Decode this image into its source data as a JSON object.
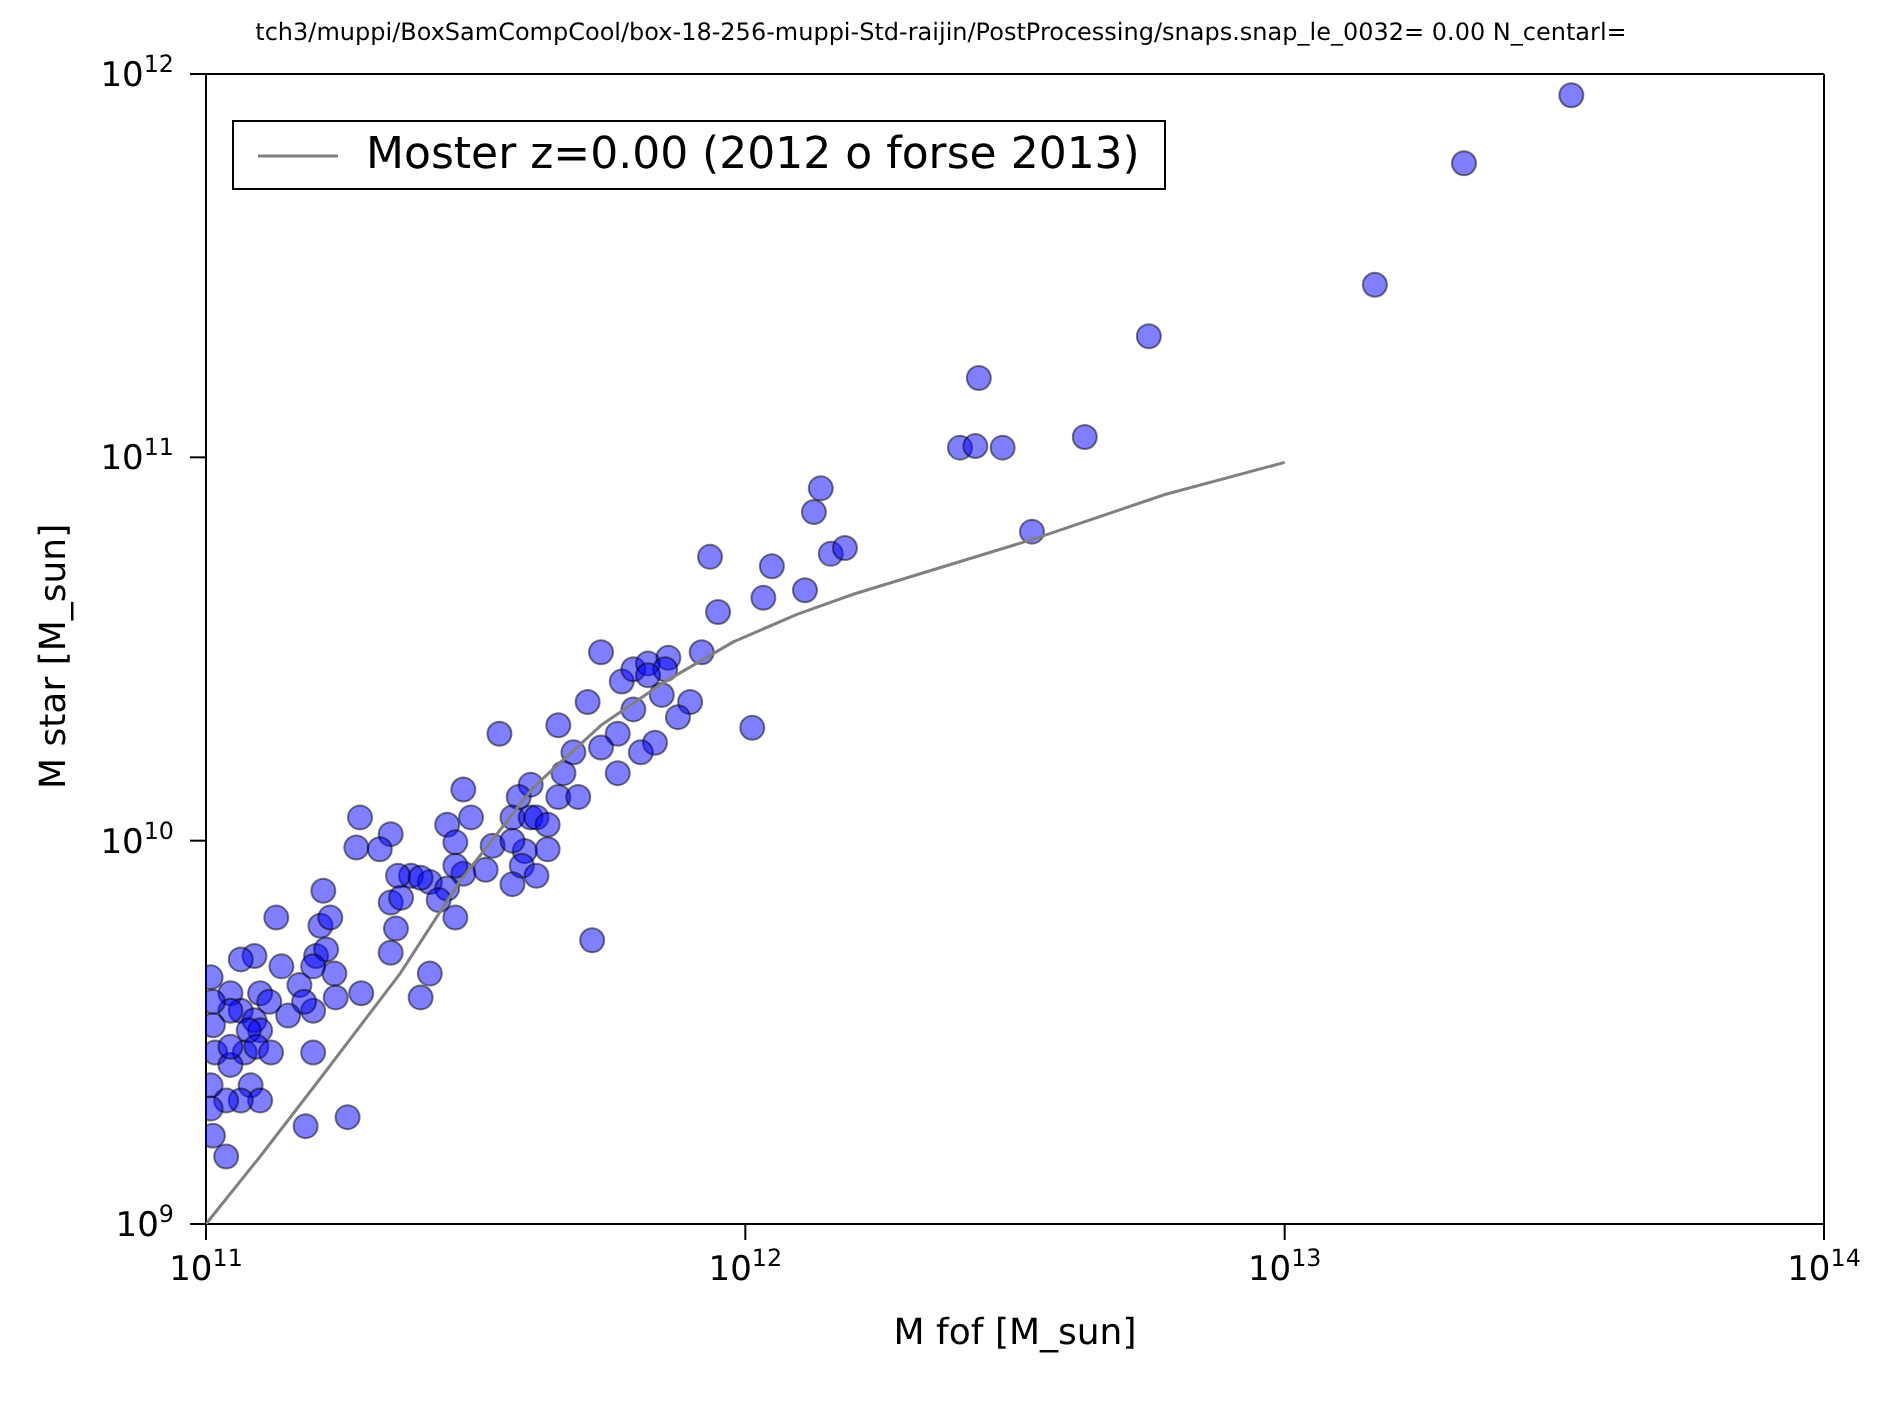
{
  "chart_data": {
    "type": "scatter",
    "title": "tch3/muppi/BoxSamCompCool/box-18-256-muppi-Std-raijin/PostProcessing/snaps.snap_le_0032= 0.00  N_centarl=",
    "xlabel": "M fof [M_sun]",
    "ylabel": "M star [M_sun]",
    "log": "xy",
    "grid": false,
    "legend": "top left",
    "xlim": [
      100000000000.0,
      100000000000000.0
    ],
    "ylim": [
      1000000000.0,
      1000000000000.0
    ],
    "xticks": [
      {
        "value": 100000000000.0,
        "label": "10$^{11}$"
      },
      {
        "value": 1000000000000.0,
        "label": "10$^{12}$"
      },
      {
        "value": 10000000000000.0,
        "label": "10$^{13}$"
      },
      {
        "value": 100000000000000.0,
        "label": "10$^{14}$"
      }
    ],
    "yticks": [
      {
        "value": 1000000000.0,
        "label": "10$^{9}$"
      },
      {
        "value": 10000000000.0,
        "label": "10$^{10}$"
      },
      {
        "value": 100000000000.0,
        "label": "10$^{11}$"
      },
      {
        "value": 1000000000000.0,
        "label": "10$^{12}$"
      }
    ],
    "series": [
      {
        "color": "#0000ff",
        "marker": "circle",
        "x": [
          34000000000000.0,
          21500000000000.0,
          14700000000000.0,
          5600000000000.0,
          4260000000000.0,
          2710000000000.0,
          2500000000000.0,
          2670000000000.0,
          3000000000000.0,
          3400000000000.0,
          1380000000000.0,
          1340000000000.0,
          1440000000000.0,
          1530000000000.0,
          1120000000000.0,
          860000000000.0,
          1290000000000.0,
          890000000000.0,
          1080000000000.0,
          540000000000.0,
          830000000000.0,
          590000000000.0,
          620000000000.0,
          660000000000.0,
          720000000000.0,
          710000000000.0,
          660000000000.0,
          700000000000.0,
          620000000000.0,
          790000000000.0,
          750000000000.0,
          1030000000000.0,
          510000000000.0,
          450000000000.0,
          580000000000.0,
          540000000000.0,
          680000000000.0,
          640000000000.0,
          580000000000.0,
          480000000000.0,
          460000000000.0,
          350000000000.0,
          400000000000.0,
          380000000000.0,
          450000000000.0,
          490000000000.0,
          300000000000.0,
          280000000000.0,
          310000000000.0,
          370000000000.0,
          400000000000.0,
          410000000000.0,
          430000000000.0,
          290000000000.0,
          340000000000.0,
          390000000000.0,
          430000000000.0,
          370000000000.0,
          385000000000.0,
          410000000000.0,
          370000000000.0,
          330000000000.0,
          300000000000.0,
          290000000000.0,
          240000000000.0,
          260000000000.0,
          280000000000.0,
          270000000000.0,
          290000000000.0,
          520000000000.0,
          260000000000.0,
          250000000000.0,
          193000000000.0,
          220000000000.0,
          190000000000.0,
          210000000000.0,
          227000000000.0,
          250000000000.0,
          220000000000.0,
          230000000000.0,
          165000000000.0,
          225000000000.0,
          220000000000.0,
          163000000000.0,
          170000000000.0,
          160000000000.0,
          167000000000.0,
          173000000000.0,
          158000000000.0,
          135000000000.0,
          123000000000.0,
          116000000000.0,
          138000000000.0,
          194000000000.0,
          174000000000.0,
          158000000000.0,
          149000000000.0,
          152000000000.0,
          142000000000.0,
          126000000000.0,
          131000000000.0,
          111000000000.0,
          116000000000.0,
          123000000000.0,
          126000000000.0,
          120000000000.0,
          111000000000.0,
          103000000000.0,
          104000000000.0,
          118000000000.0,
          124000000000.0,
          132000000000.0,
          158000000000.0,
          111000000000.0,
          121000000000.0,
          126000000000.0,
          116000000000.0,
          109000000000.0,
          102000000000.0,
          102000000000.0,
          103000000000.0,
          109000000000.0,
          153000000000.0,
          183000000000.0,
          102000000000.0,
          103000000000.0,
          111000000000.0
        ],
        "values": [
          880000000000.0,
          585000000000.0,
          282000000000.0,
          207000000000.0,
          113000000000.0,
          161000000000.0,
          106000000000.0,
          107000000000.0,
          106000000000.0,
          64000000000.0,
          83000000000.0,
          72000000000.0,
          56000000000.0,
          58000000000.0,
          52000000000.0,
          55000000000.0,
          45000000000.0,
          39500000000.0,
          43000000000.0,
          31000000000.0,
          31000000000.0,
          26000000000.0,
          28000000000.0,
          29000000000.0,
          30000000000.0,
          28000000000.0,
          27000000000.0,
          24000000000.0,
          22000000000.0,
          23000000000.0,
          21000000000.0,
          19700000000.0,
          23000000000.0,
          20000000000.0,
          19000000000.0,
          17500000000.0,
          18000000000.0,
          17000000000.0,
          15000000000.0,
          17000000000.0,
          15000000000.0,
          19000000000.0,
          14000000000.0,
          13000000000.0,
          13000000000.0,
          13000000000.0,
          13600000000.0,
          11000000000.0,
          11500000000.0,
          11500000000.0,
          11500000000.0,
          11500000000.0,
          11000000000.0,
          9900000000.0,
          9700000000.0,
          9400000000.0,
          9500000000.0,
          10000000000.0,
          8600000000.0,
          8100000000.0,
          7700000000.0,
          8400000000.0,
          8200000000.0,
          8600000000.0,
          8100000000.0,
          7800000000.0,
          7500000000.0,
          7000000000.0,
          6300000000.0,
          5500000000.0,
          4500000000.0,
          3900000000.0,
          11500000000.0,
          10400000000.0,
          9600000000.0,
          9500000000.0,
          8100000000.0,
          8000000000.0,
          6900000000.0,
          7100000000.0,
          7400000000.0,
          5900000000.0,
          5100000000.0,
          6000000000.0,
          6300000000.0,
          5000000000.0,
          5200000000.0,
          4500000000.0,
          4700000000.0,
          6300000000.0,
          5000000000.0,
          4900000000.0,
          4700000000.0,
          4000000000.0,
          3900000000.0,
          3600000000.0,
          4200000000.0,
          3800000000.0,
          3500000000.0,
          4000000000.0,
          3800000000.0,
          4000000000.0,
          3600000000.0,
          3400000000.0,
          3200000000.0,
          3200000000.0,
          3600000000.0,
          3300000000.0,
          2800000000.0,
          2800000000.0,
          2900000000.0,
          2800000000.0,
          2800000000.0,
          2600000000.0,
          2300000000.0,
          2100000000.0,
          2100000000.0,
          2100000000.0,
          2300000000.0,
          2000000000.0,
          1700000000.0,
          1500000000.0,
          1800000000.0,
          1900000000.0,
          4400000000.0,
          3800000000.0,
          2900000000.0
        ]
      },
      {
        "type": "line",
        "name": "Moster z=0.00 (2012 o forse 2013)",
        "color": "#808080",
        "marker": "none",
        "line_style": "solid",
        "x": [
          100000000000.0,
          126000000000.0,
          163000000000.0,
          229000000000.0,
          295000000000.0,
          405000000000.0,
          540000000000.0,
          710000000000.0,
          950000000000.0,
          1250000000000.0,
          1590000000000.0,
          3400000000000.0,
          6000000000000.0,
          10000000000000.0
        ],
        "values": [
          1000000000.0,
          1500000000.0,
          2400000000.0,
          4500000000.0,
          7800000000.0,
          13800000000.0,
          20000000000.0,
          26000000000.0,
          33000000000.0,
          39000000000.0,
          44000000000.0,
          61000000000.0,
          80000000000.0,
          97000000000.0
        ]
      }
    ]
  }
}
